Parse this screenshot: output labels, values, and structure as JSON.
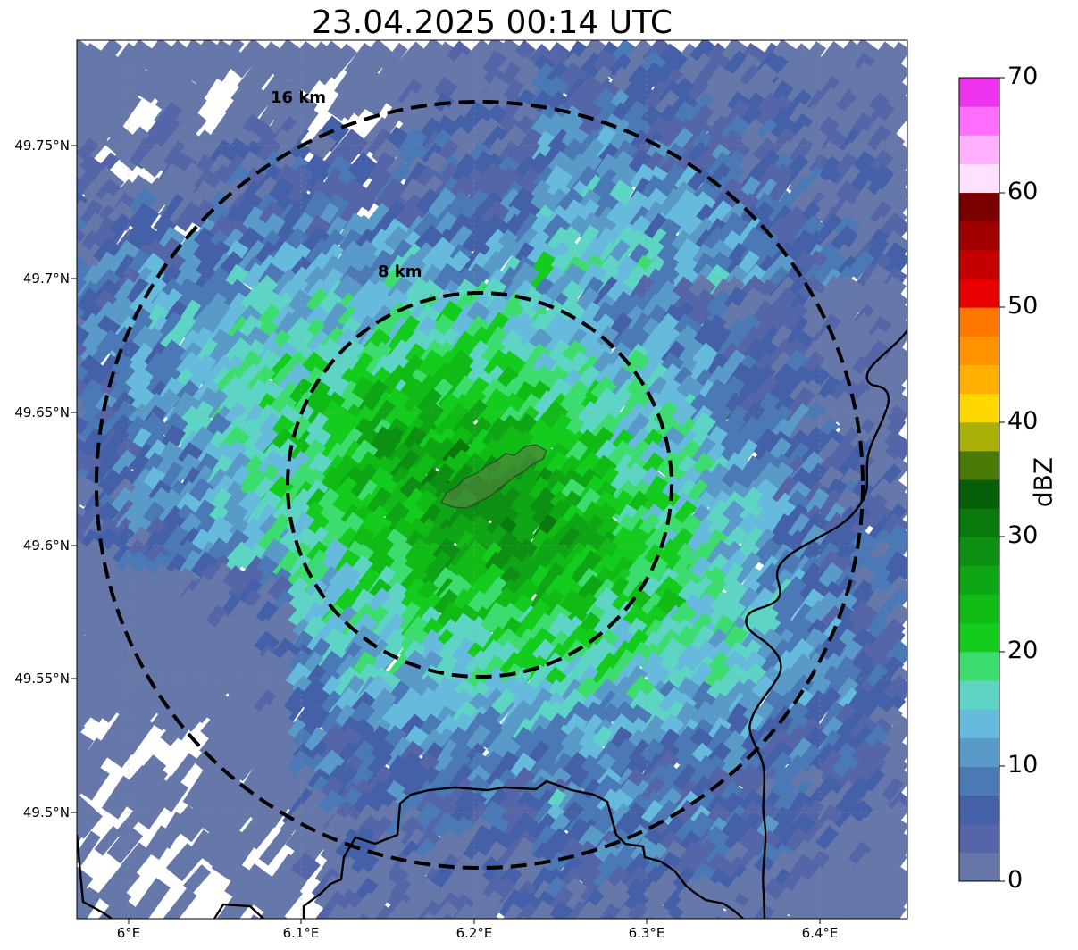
{
  "title": "23.04.2025 00:14 UTC",
  "map": {
    "lat_labels": [
      "49.75°N",
      "49.7°N",
      "49.65°N",
      "49.6°N",
      "49.55°N",
      "49.5°N"
    ],
    "lon_labels": [
      "6°E",
      "6.1°E",
      "6.2°E",
      "6.3°E",
      "6.4°E"
    ],
    "range_rings": [
      {
        "label": "16 km",
        "radius_km": 16
      },
      {
        "label": "8 km",
        "radius_km": 8
      }
    ],
    "layers": [
      "radar-reflectivity",
      "country-border",
      "river",
      "city-outline",
      "gridlines"
    ]
  },
  "colorbar": {
    "label": "dBZ",
    "tick_labels": [
      "0",
      "10",
      "20",
      "30",
      "40",
      "50",
      "60",
      "70"
    ],
    "min": 0,
    "max": 70,
    "step": 2.5,
    "colors": [
      "#6677aa",
      "#5566a8",
      "#4460a8",
      "#4a79b5",
      "#5a9ac8",
      "#66bbdd",
      "#5dd4c4",
      "#3ddc6e",
      "#14cc1e",
      "#10bb16",
      "#0ea614",
      "#0c8f12",
      "#0a7a0e",
      "#075f0a",
      "#4a7a08",
      "#aab00a",
      "#ffd800",
      "#ffb000",
      "#ff9400",
      "#ff7800",
      "#e80000",
      "#c40000",
      "#a00000",
      "#7a0000",
      "#ffe0ff",
      "#ffb0ff",
      "#ff6eff",
      "#ee33ee"
    ]
  }
}
